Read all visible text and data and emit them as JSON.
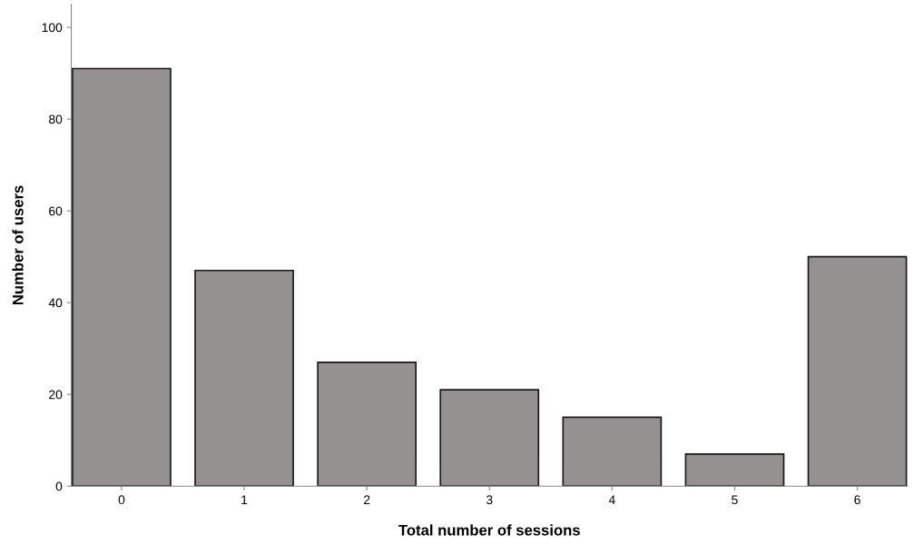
{
  "chart_data": {
    "type": "bar",
    "xlabel": "Total number of sessions",
    "ylabel": "Number of users",
    "categories": [
      "0",
      "1",
      "2",
      "3",
      "4",
      "5",
      "6"
    ],
    "values": [
      91,
      47,
      27,
      21,
      15,
      7,
      50
    ],
    "color": "#959190",
    "ylim": [
      0,
      105
    ],
    "yticks": [
      0,
      20,
      40,
      60,
      80,
      100
    ],
    "grid": false
  }
}
